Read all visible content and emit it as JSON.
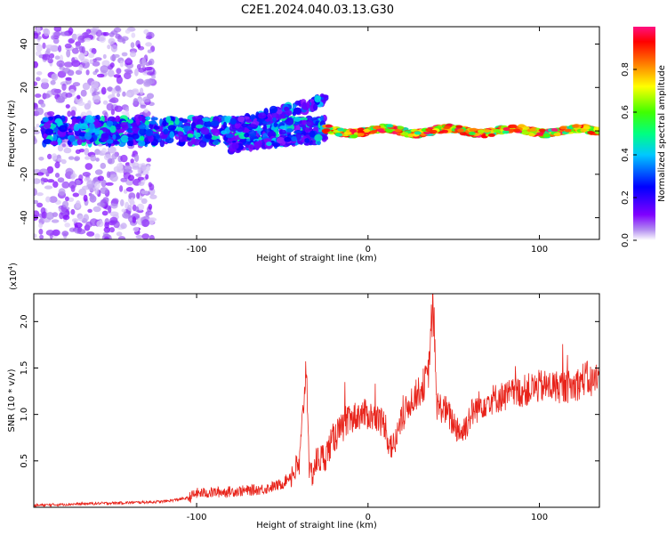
{
  "title": "C2E1.2024.040.03.13.G30",
  "chart_data": [
    {
      "type": "heatmap",
      "title": "C2E1.2024.040.03.13.G30",
      "xlabel": "Height of straight line (km)",
      "ylabel": "Frequency (Hz)",
      "xlim": [
        -195,
        135
      ],
      "ylim": [
        -50,
        48
      ],
      "x_ticks": [
        -100,
        0,
        100
      ],
      "y_ticks": [
        -40,
        -20,
        0,
        20,
        40
      ],
      "x_tick_labels": [
        "-100",
        "0",
        "100"
      ],
      "y_tick_labels": [
        "-40",
        "-20",
        "0",
        "20",
        "40"
      ],
      "colorbar": {
        "label": "Normalized spectral amplitude",
        "range": [
          0,
          1
        ],
        "ticks": [
          0.0,
          0.2,
          0.4,
          0.6,
          0.8
        ],
        "tick_labels": [
          "0.0",
          "0.2",
          "0.4",
          "0.6",
          "0.8"
        ],
        "colormap": [
          "#ffffff",
          "#8a2be2",
          "#0000ff",
          "#00ffff",
          "#00ff00",
          "#ffff00",
          "#ff0000",
          "#ff1493"
        ]
      },
      "grid": false,
      "features": [
        {
          "x_range": [
            -195,
            -125
          ],
          "freq_range": [
            -50,
            48
          ],
          "amplitude_range": [
            0.02,
            0.12
          ]
        },
        {
          "x_range": [
            -190,
            -25
          ],
          "freq_range": [
            -6,
            6
          ],
          "amplitude_range": [
            0.12,
            0.5
          ]
        },
        {
          "x_range": [
            -80,
            -25
          ],
          "freq_range": [
            -12,
            18
          ],
          "amplitude_range": [
            0.1,
            0.45
          ]
        },
        {
          "x_range": [
            -25,
            135
          ],
          "freq_range": [
            -3,
            3
          ],
          "amplitude_range": [
            0.4,
            1.0
          ]
        }
      ]
    },
    {
      "type": "line",
      "xlabel": "Height of straight line (km)",
      "ylabel": "SNR (10 * v/v)",
      "y_multiplier_label": "(x10",
      "y_multiplier_exp": "4",
      "xlim": [
        -195,
        135
      ],
      "ylim": [
        0,
        2.3
      ],
      "x_ticks": [
        -100,
        0,
        100
      ],
      "y_ticks": [
        0.5,
        1.0,
        1.5,
        2.0
      ],
      "x_tick_labels": [
        "-100",
        "0",
        "100"
      ],
      "y_tick_labels": [
        "0.5",
        "1.0",
        "1.5",
        "2.0"
      ],
      "color": "#e8231a",
      "grid": false,
      "series": [
        {
          "points": [
            [
              -195,
              0.02
            ],
            [
              -180,
              0.03
            ],
            [
              -160,
              0.04
            ],
            [
              -140,
              0.05
            ],
            [
              -120,
              0.06
            ],
            [
              -105,
              0.1
            ],
            [
              -100,
              0.15
            ],
            [
              -90,
              0.16
            ],
            [
              -80,
              0.17
            ],
            [
              -70,
              0.18
            ],
            [
              -60,
              0.2
            ],
            [
              -50,
              0.25
            ],
            [
              -45,
              0.35
            ],
            [
              -40,
              0.45
            ],
            [
              -36,
              1.55
            ],
            [
              -34,
              0.3
            ],
            [
              -30,
              0.5
            ],
            [
              -25,
              0.55
            ],
            [
              -20,
              0.75
            ],
            [
              -15,
              0.85
            ],
            [
              -10,
              0.95
            ],
            [
              -5,
              1.0
            ],
            [
              0,
              1.0
            ],
            [
              5,
              0.95
            ],
            [
              10,
              0.9
            ],
            [
              12,
              0.7
            ],
            [
              15,
              0.65
            ],
            [
              20,
              0.95
            ],
            [
              25,
              1.15
            ],
            [
              30,
              1.25
            ],
            [
              35,
              1.4
            ],
            [
              38,
              2.25
            ],
            [
              40,
              1.1
            ],
            [
              45,
              1.05
            ],
            [
              50,
              0.9
            ],
            [
              55,
              0.8
            ],
            [
              60,
              1.0
            ],
            [
              65,
              1.1
            ],
            [
              70,
              1.15
            ],
            [
              80,
              1.2
            ],
            [
              90,
              1.25
            ],
            [
              100,
              1.3
            ],
            [
              110,
              1.3
            ],
            [
              120,
              1.3
            ],
            [
              127,
              1.4
            ],
            [
              130,
              1.35
            ],
            [
              135,
              1.4
            ]
          ]
        }
      ]
    }
  ]
}
